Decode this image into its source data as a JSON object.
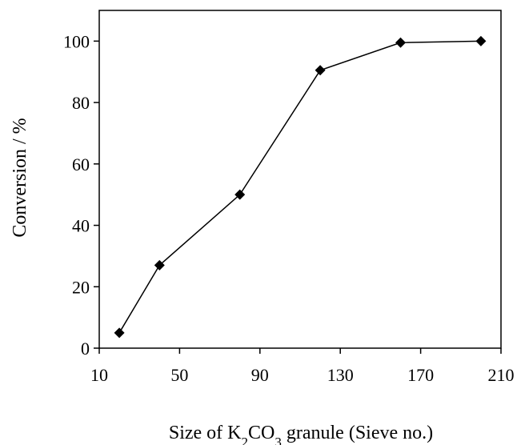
{
  "chart_data": {
    "type": "line",
    "title": "",
    "xlabel": "Size of K₂CO₃ granule (Sieve no.)",
    "xlabel_parts": {
      "pre": "Size of K",
      "sub1": "2",
      "mid": "CO",
      "sub2": "3",
      "post": " granule (Sieve no.)"
    },
    "ylabel": "Conversion / %",
    "xlim": [
      10,
      210
    ],
    "ylim": [
      0,
      110
    ],
    "x_ticks": [
      10,
      50,
      90,
      130,
      170,
      210
    ],
    "y_ticks": [
      0,
      20,
      40,
      60,
      80,
      100
    ],
    "grid": false,
    "marker": "diamond",
    "series": [
      {
        "x": [
          20,
          40,
          80,
          120,
          160,
          200
        ],
        "values": [
          5,
          27,
          50,
          90.5,
          99.5,
          100
        ]
      }
    ]
  }
}
